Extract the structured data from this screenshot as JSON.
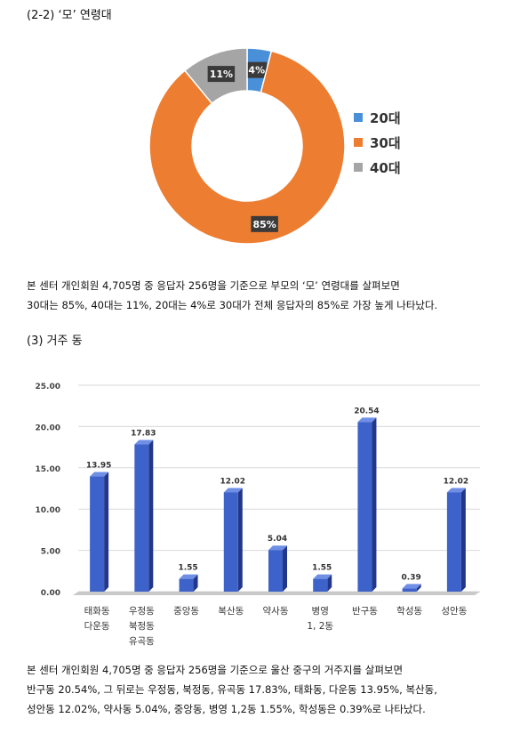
{
  "section1": {
    "heading": "(2-2) ‘모’ 연령대",
    "paragraph_lines": [
      "본 센터 개인회원 4,705명 중 응답자 256명을 기준으로 부모의 ‘모’ 연령대를 살펴보면",
      "30대는 85%, 40대는 11%, 20대는 4%로 30대가 전체 응답자의 85%로 가장 높게 나타났다."
    ]
  },
  "section2": {
    "heading": "(3) 거주 동",
    "paragraph_lines": [
      "본 센터 개인회원 4,705명 중 응답자 256명을 기준으로 울산 중구의 거주지를 살펴보면",
      "반구동 20.54%, 그 뒤로는 우정동, 북정동, 유곡동 17.83%, 태화동, 다운동 13.95%, 복산동,",
      "성안동 12.02%, 약사동 5.04%, 중앙동, 병영 1,2동 1.55%, 학성동은 0.39%로 나타났다."
    ]
  },
  "chart_data": [
    {
      "type": "pie",
      "variant": "donut",
      "categories": [
        "20대",
        "30대",
        "40대"
      ],
      "values": [
        4,
        85,
        11
      ],
      "data_labels": [
        "4%",
        "85%",
        "11%"
      ],
      "colors": [
        "#4A90D9",
        "#ED7D31",
        "#A5A5A5"
      ],
      "legend": "right"
    },
    {
      "type": "bar",
      "categories": [
        [
          "태화동",
          "다운동"
        ],
        [
          "우정동",
          "북정동",
          "유곡동"
        ],
        [
          "중앙동"
        ],
        [
          "복산동"
        ],
        [
          "약사동"
        ],
        [
          "병영",
          "1, 2동"
        ],
        [
          "반구동"
        ],
        [
          "학성동"
        ],
        [
          "성안동"
        ]
      ],
      "values": [
        13.95,
        17.83,
        1.55,
        12.02,
        5.04,
        1.55,
        20.54,
        0.39,
        12.02
      ],
      "data_labels": [
        "13.95",
        "17.83",
        "1.55",
        "12.02",
        "5.04",
        "1.55",
        "20.54",
        "0.39",
        "12.02"
      ],
      "ylim": [
        0,
        25
      ],
      "yticks": [
        "0.00",
        "5.00",
        "10.00",
        "15.00",
        "20.00",
        "25.00"
      ],
      "grid": true,
      "color": "#3D62C9"
    }
  ]
}
